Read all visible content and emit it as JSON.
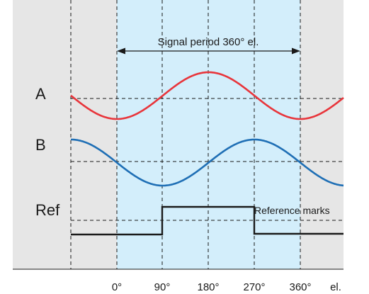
{
  "title": "Signal period 360° el.",
  "signals": {
    "a": "A",
    "b": "B",
    "ref": "Ref"
  },
  "reference_label": "Reference marks",
  "axis": {
    "ticks": [
      "0°",
      "90°",
      "180°",
      "270°",
      "360°"
    ],
    "unit": "el."
  },
  "colors": {
    "background": "#e6e6e6",
    "period_band": "#d3eefb",
    "signal_a": "#e8353b",
    "signal_b": "#1f6fb5",
    "ref_signal": "#1a1a1a",
    "grid": "#1a1a1a"
  }
}
